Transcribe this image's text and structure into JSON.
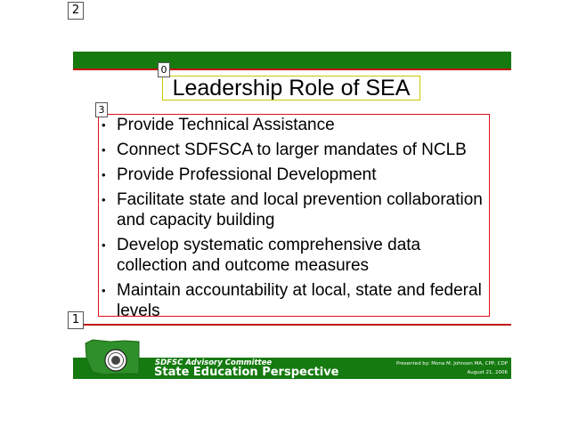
{
  "annotations": {
    "tag_0": "0",
    "tag_1": "1",
    "tag_2": "2",
    "tag_3": "3"
  },
  "slide": {
    "title": "Leadership Role of SEA",
    "bullets": [
      "Provide Technical Assistance",
      "Connect SDFSCA to larger mandates of NCLB",
      "Provide Professional Development",
      "Facilitate state and local prevention collaboration and capacity building",
      "Develop systematic comprehensive data collection and outcome measures",
      "Maintain accountability at local, state and federal levels"
    ]
  },
  "footer": {
    "organization": "SDFSC Advisory Committee",
    "perspective": "State Education Perspective",
    "presenter": "Presented by: Mona M. Johnson MA, CPP, CDP",
    "date": "August 21, 2006"
  },
  "colors": {
    "band_green": "#157a0f",
    "rule_red": "#c11515",
    "content_box": "#e0101a",
    "title_box": "#c8c800"
  },
  "icons": [
    "washington-state-seal-icon"
  ]
}
